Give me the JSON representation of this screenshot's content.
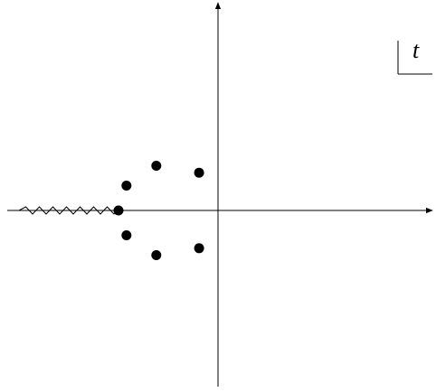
{
  "diagram": {
    "plane_label": "t",
    "points": [
      {
        "re": -1.0,
        "im": 0.0
      },
      {
        "re": -0.92,
        "im": 0.25
      },
      {
        "re": -0.62,
        "im": 0.45
      },
      {
        "re": -0.19,
        "im": 0.38
      },
      {
        "re": -0.92,
        "im": -0.25
      },
      {
        "re": -0.62,
        "im": -0.45
      },
      {
        "re": -0.19,
        "im": -0.38
      }
    ],
    "branch_cut": {
      "from_re": -2.0,
      "to_re": -1.0,
      "style": "zigzag"
    },
    "colors": {
      "ink": "#000000",
      "background": "#ffffff"
    }
  }
}
